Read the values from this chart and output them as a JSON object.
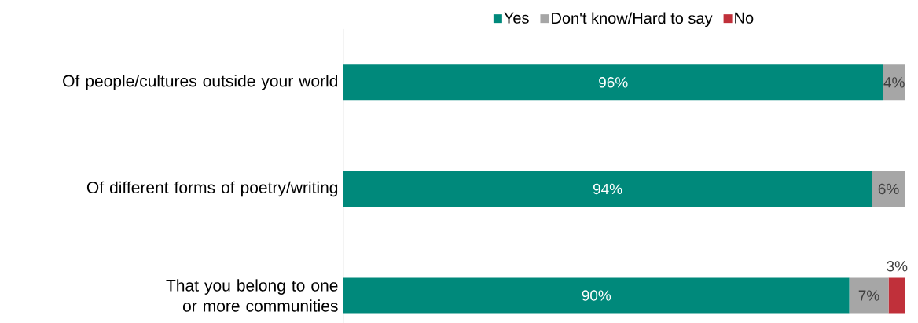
{
  "chart_data": {
    "type": "bar",
    "orientation": "horizontal",
    "stacked": true,
    "legend": "top",
    "xlim": [
      0,
      100
    ],
    "categories": [
      "Of people/cultures outside your world",
      "Of different forms of poetry/writing",
      "That you belong to one or more communities"
    ],
    "series": [
      {
        "name": "Yes",
        "color": "#00897b",
        "values": [
          96,
          94,
          90
        ],
        "value_labels": [
          "96%",
          "94%",
          "90%"
        ]
      },
      {
        "name": "Don't know/Hard to say",
        "color": "#a6a6a6",
        "values": [
          4,
          6,
          7
        ],
        "value_labels": [
          "4%",
          "6%",
          "7%"
        ]
      },
      {
        "name": "No",
        "color": "#c0303a",
        "values": [
          null,
          null,
          3
        ],
        "value_labels": [
          null,
          null,
          "3%"
        ]
      }
    ]
  }
}
